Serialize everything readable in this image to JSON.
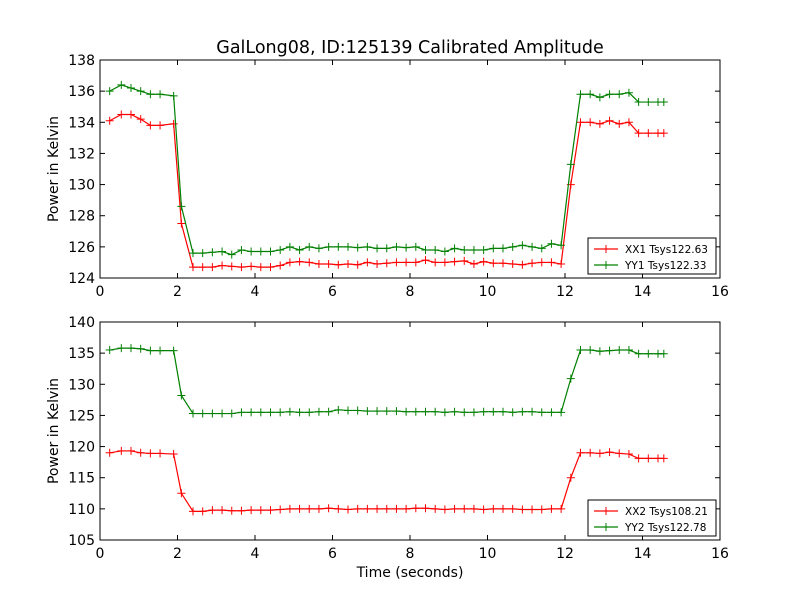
{
  "title": "GalLong08, ID:125139 Calibrated Amplitude",
  "chart_data": [
    {
      "type": "line",
      "ylabel": "Power in Kelvin",
      "xlabel": "",
      "xlim": [
        0,
        16
      ],
      "ylim": [
        124,
        138
      ],
      "xticks": [
        0,
        2,
        4,
        6,
        8,
        10,
        12,
        14,
        16
      ],
      "yticks": [
        124,
        126,
        128,
        130,
        132,
        134,
        136,
        138
      ],
      "grid": false,
      "legend_position": "lower-right",
      "x": [
        0.25,
        0.55,
        0.8,
        1.05,
        1.3,
        1.55,
        1.9,
        2.1,
        2.4,
        2.65,
        2.9,
        3.15,
        3.4,
        3.65,
        3.9,
        4.15,
        4.4,
        4.65,
        4.9,
        5.15,
        5.4,
        5.65,
        5.9,
        6.15,
        6.4,
        6.65,
        6.9,
        7.15,
        7.4,
        7.65,
        7.9,
        8.15,
        8.4,
        8.65,
        8.9,
        9.15,
        9.4,
        9.65,
        9.9,
        10.15,
        10.4,
        10.65,
        10.9,
        11.15,
        11.4,
        11.65,
        11.9,
        12.15,
        12.4,
        12.65,
        12.9,
        13.15,
        13.4,
        13.65,
        13.9,
        14.15,
        14.4,
        14.55
      ],
      "series": [
        {
          "name": "XX1 Tsys122.63",
          "color": "#ff0000",
          "values": [
            134.1,
            134.5,
            134.5,
            134.2,
            133.8,
            133.8,
            133.9,
            127.5,
            124.7,
            124.7,
            124.7,
            124.8,
            124.75,
            124.7,
            124.75,
            124.7,
            124.7,
            124.8,
            125.0,
            125.05,
            125.0,
            124.9,
            124.9,
            124.85,
            124.9,
            124.85,
            125.0,
            124.9,
            124.95,
            125.0,
            125.0,
            125.0,
            125.15,
            125.0,
            125.0,
            125.05,
            125.1,
            124.9,
            125.05,
            124.95,
            124.95,
            124.9,
            124.85,
            124.95,
            125.0,
            125.0,
            124.9,
            130.0,
            134.0,
            134.0,
            133.9,
            134.1,
            133.9,
            134.0,
            133.3,
            133.3,
            133.3,
            133.3
          ]
        },
        {
          "name": "YY1 Tsys122.33",
          "color": "#008000",
          "values": [
            136.0,
            136.4,
            136.2,
            136.0,
            135.8,
            135.8,
            135.7,
            128.6,
            125.6,
            125.6,
            125.65,
            125.7,
            125.5,
            125.8,
            125.7,
            125.7,
            125.7,
            125.8,
            126.0,
            125.8,
            126.0,
            125.9,
            126.0,
            126.0,
            126.0,
            125.95,
            126.0,
            125.9,
            125.9,
            126.0,
            125.95,
            126.0,
            125.8,
            125.8,
            125.7,
            125.9,
            125.8,
            125.8,
            125.8,
            125.9,
            125.9,
            126.0,
            126.1,
            126.0,
            125.9,
            126.2,
            126.1,
            131.3,
            135.8,
            135.8,
            135.6,
            135.8,
            135.8,
            135.9,
            135.3,
            135.3,
            135.3,
            135.3
          ]
        }
      ]
    },
    {
      "type": "line",
      "ylabel": "Power in Kelvin",
      "xlabel": "Time (seconds)",
      "xlim": [
        0,
        16
      ],
      "ylim": [
        105,
        140
      ],
      "xticks": [
        0,
        2,
        4,
        6,
        8,
        10,
        12,
        14,
        16
      ],
      "yticks": [
        105,
        110,
        115,
        120,
        125,
        130,
        135,
        140
      ],
      "grid": false,
      "legend_position": "lower-right",
      "x": [
        0.25,
        0.55,
        0.8,
        1.05,
        1.3,
        1.55,
        1.9,
        2.1,
        2.4,
        2.65,
        2.9,
        3.15,
        3.4,
        3.65,
        3.9,
        4.15,
        4.4,
        4.65,
        4.9,
        5.15,
        5.4,
        5.65,
        5.9,
        6.15,
        6.4,
        6.65,
        6.9,
        7.15,
        7.4,
        7.65,
        7.9,
        8.15,
        8.4,
        8.65,
        8.9,
        9.15,
        9.4,
        9.65,
        9.9,
        10.15,
        10.4,
        10.65,
        10.9,
        11.15,
        11.4,
        11.65,
        11.9,
        12.15,
        12.4,
        12.65,
        12.9,
        13.15,
        13.4,
        13.65,
        13.9,
        14.15,
        14.4,
        14.55
      ],
      "series": [
        {
          "name": "XX2 Tsys108.21",
          "color": "#ff0000",
          "values": [
            119.0,
            119.3,
            119.3,
            119.0,
            118.9,
            118.9,
            118.8,
            112.5,
            109.6,
            109.6,
            109.8,
            109.8,
            109.7,
            109.7,
            109.8,
            109.8,
            109.8,
            109.9,
            110.0,
            110.0,
            110.0,
            110.0,
            110.1,
            110.0,
            109.9,
            110.0,
            110.0,
            110.0,
            110.0,
            110.0,
            110.0,
            110.1,
            110.1,
            110.0,
            109.9,
            110.0,
            110.0,
            110.0,
            109.9,
            110.0,
            110.0,
            110.0,
            109.9,
            109.9,
            109.9,
            110.0,
            110.0,
            115.0,
            119.0,
            119.0,
            118.9,
            119.1,
            118.9,
            118.8,
            118.1,
            118.1,
            118.1,
            118.1
          ]
        },
        {
          "name": "YY2 Tsys122.78",
          "color": "#008000",
          "values": [
            135.5,
            135.8,
            135.8,
            135.7,
            135.4,
            135.4,
            135.4,
            128.2,
            125.3,
            125.3,
            125.3,
            125.3,
            125.3,
            125.5,
            125.5,
            125.5,
            125.5,
            125.5,
            125.6,
            125.5,
            125.5,
            125.6,
            125.6,
            125.9,
            125.8,
            125.8,
            125.7,
            125.7,
            125.7,
            125.7,
            125.6,
            125.6,
            125.6,
            125.6,
            125.5,
            125.6,
            125.5,
            125.5,
            125.6,
            125.6,
            125.6,
            125.5,
            125.6,
            125.6,
            125.5,
            125.5,
            125.5,
            130.9,
            135.5,
            135.5,
            135.3,
            135.4,
            135.5,
            135.5,
            134.9,
            134.9,
            134.9,
            134.9
          ]
        }
      ]
    }
  ]
}
